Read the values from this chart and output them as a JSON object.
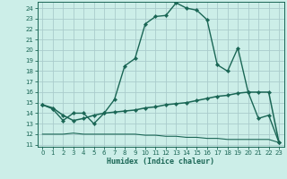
{
  "title": "",
  "xlabel": "Humidex (Indice chaleur)",
  "bg_color": "#cceee8",
  "grid_color": "#aacccc",
  "line_color": "#1a6655",
  "x": [
    0,
    1,
    2,
    3,
    4,
    5,
    6,
    7,
    8,
    9,
    10,
    11,
    12,
    13,
    14,
    15,
    16,
    17,
    18,
    19,
    20,
    21,
    22,
    23
  ],
  "y_upper": [
    14.8,
    14.4,
    13.3,
    14.0,
    14.0,
    13.0,
    14.0,
    15.3,
    18.5,
    19.2,
    22.5,
    23.2,
    23.3,
    24.5,
    24.0,
    23.8,
    22.9,
    18.6,
    18.0,
    20.2,
    16.0,
    13.5,
    13.8,
    11.2
  ],
  "y_mid": [
    14.8,
    14.5,
    13.8,
    13.3,
    13.5,
    13.8,
    14.0,
    14.1,
    14.2,
    14.3,
    14.5,
    14.6,
    14.8,
    14.9,
    15.0,
    15.2,
    15.4,
    15.6,
    15.7,
    15.9,
    16.0,
    16.0,
    16.0,
    11.2
  ],
  "y_lower": [
    12.0,
    12.0,
    12.0,
    12.1,
    12.0,
    12.0,
    12.0,
    12.0,
    12.0,
    12.0,
    11.9,
    11.9,
    11.8,
    11.8,
    11.7,
    11.7,
    11.6,
    11.6,
    11.5,
    11.5,
    11.5,
    11.5,
    11.5,
    11.2
  ],
  "ylim": [
    10.8,
    24.6
  ],
  "yticks": [
    11,
    12,
    13,
    14,
    15,
    16,
    17,
    18,
    19,
    20,
    21,
    22,
    23,
    24
  ],
  "xticks": [
    0,
    1,
    2,
    3,
    4,
    5,
    6,
    7,
    8,
    9,
    10,
    11,
    12,
    13,
    14,
    15,
    16,
    17,
    18,
    19,
    20,
    21,
    22,
    23
  ],
  "markersize": 2.2,
  "lw_upper": 1.0,
  "lw_mid": 1.1,
  "lw_lower": 0.8,
  "tick_labelsize": 5.0,
  "xlabel_fontsize": 6.0
}
